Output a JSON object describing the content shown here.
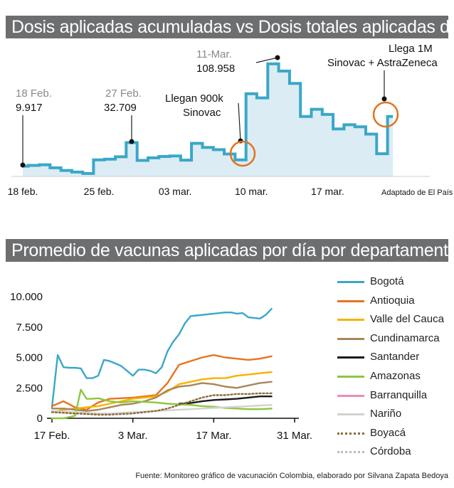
{
  "colors": {
    "banner_bg": "#6d6e70",
    "step_line": "#3aa7c8",
    "step_fill": "#dcecf4",
    "highlight_circle": "#e2731e"
  },
  "chart1_title": "Dosis aplicadas acumuladas vs Dosis totales aplicadas día",
  "chart2_title": "Promedio de vacunas aplicadas por día por departamento",
  "source_note": "Adaptado de El País",
  "footer": "Fuente: Monitoreo gráfico de vacunación Colombia, elaborado por Silvana Zapata Bedoya",
  "chart_data": [
    {
      "type": "area",
      "step": true,
      "title": "Dosis aplicadas acumuladas vs Dosis totales aplicadas día",
      "x_tick_labels": [
        "18 feb.",
        "25 feb.",
        "03 mar.",
        "10 mar.",
        "17 mar."
      ],
      "x_tick_days": [
        0,
        7,
        14,
        21,
        28
      ],
      "ylim": [
        0,
        115000
      ],
      "series": [
        {
          "x": [
            0,
            1,
            2,
            3,
            4,
            5,
            6,
            7,
            8,
            9,
            10,
            11,
            12,
            13,
            14,
            15,
            16,
            17,
            18,
            19,
            20,
            21,
            22,
            23,
            24,
            25,
            26,
            27,
            28,
            29,
            30,
            31,
            32,
            33,
            34
          ],
          "values": [
            9917,
            10700,
            11300,
            8300,
            5800,
            4200,
            2800,
            16000,
            16700,
            19000,
            32709,
            15500,
            18000,
            19300,
            19800,
            15800,
            32000,
            28000,
            25900,
            21700,
            16000,
            80000,
            76000,
            108958,
            102000,
            90000,
            58000,
            65000,
            60000,
            46000,
            50000,
            48000,
            41000,
            22000,
            58000
          ]
        }
      ],
      "annotations": [
        {
          "date": "18 Feb.",
          "value": "9.917"
        },
        {
          "date": "27 Feb.",
          "value": "32.709"
        },
        {
          "date": "11-Mar.",
          "value": "108.958"
        },
        {
          "text_lines": [
            "Llegan 900k",
            "Sinovac"
          ]
        },
        {
          "text_lines": [
            "Llega 1M",
            "Sinovac + AstraZeneca"
          ]
        }
      ]
    },
    {
      "type": "line",
      "title": "Promedio de vacunas aplicadas por día por departamento",
      "x_tick_labels": [
        "17 Feb.",
        "3 Mar.",
        "17 Mar.",
        "31 Mar."
      ],
      "x_tick_days": [
        0,
        14,
        28,
        42
      ],
      "y_ticks": [
        "0",
        "2.500",
        "5.000",
        "7.500",
        "10.000"
      ],
      "ylim": [
        0,
        10000
      ],
      "series": [
        {
          "name": "Bogotá",
          "color": "#3aa7c8",
          "x": [
            0,
            1,
            2,
            3,
            4,
            5,
            6,
            7,
            8,
            9,
            10,
            11,
            12,
            13,
            14,
            15,
            16,
            17,
            18,
            19,
            20,
            21,
            22,
            23,
            24,
            25,
            26,
            27,
            28,
            29,
            30,
            31,
            32,
            33,
            34,
            35,
            36,
            37,
            38
          ],
          "values": [
            900,
            5200,
            4200,
            4150,
            4150,
            4100,
            3300,
            3300,
            3500,
            4800,
            4700,
            4500,
            4300,
            3900,
            3500,
            4000,
            4000,
            3900,
            3700,
            4200,
            5500,
            6300,
            6900,
            7800,
            8400,
            8450,
            8500,
            8550,
            8600,
            8650,
            8700,
            8700,
            8600,
            8650,
            8300,
            8250,
            8200,
            8500,
            9000
          ]
        },
        {
          "name": "Antioquia",
          "color": "#e8731e",
          "x": [
            0,
            2,
            4,
            6,
            8,
            10,
            12,
            14,
            16,
            18,
            20,
            22,
            24,
            26,
            28,
            30,
            32,
            34,
            36,
            38
          ],
          "values": [
            1000,
            1400,
            900,
            700,
            1300,
            1600,
            1650,
            1700,
            1800,
            1900,
            2900,
            4400,
            4700,
            5000,
            5200,
            5000,
            4900,
            4800,
            4900,
            5100
          ]
        },
        {
          "name": "Valle del Cauca",
          "color": "#f5b400",
          "x": [
            0,
            2,
            4,
            6,
            8,
            10,
            12,
            14,
            16,
            18,
            20,
            22,
            24,
            26,
            28,
            30,
            32,
            34,
            36,
            38
          ],
          "values": [
            500,
            700,
            800,
            900,
            1000,
            1200,
            1400,
            1600,
            1700,
            1800,
            2200,
            2800,
            3000,
            3200,
            3300,
            3300,
            3500,
            3600,
            3700,
            3800
          ]
        },
        {
          "name": "Cundinamarca",
          "color": "#a8865a",
          "x": [
            0,
            2,
            4,
            6,
            8,
            10,
            12,
            14,
            16,
            18,
            20,
            22,
            24,
            26,
            28,
            30,
            32,
            34,
            36,
            38
          ],
          "values": [
            800,
            800,
            700,
            600,
            700,
            900,
            1100,
            1200,
            1400,
            1700,
            2300,
            2600,
            2700,
            2900,
            2800,
            2600,
            2500,
            2700,
            2900,
            3000
          ]
        },
        {
          "name": "Santander",
          "color": "#1a1a1a",
          "x": [
            0,
            2,
            4,
            6,
            8,
            10,
            12,
            14,
            16,
            18,
            20,
            22,
            24,
            26,
            28,
            30,
            32,
            34,
            36,
            38
          ],
          "values": [
            null,
            null,
            null,
            null,
            null,
            null,
            null,
            null,
            null,
            null,
            null,
            1200,
            1250,
            1400,
            1500,
            1550,
            1600,
            1700,
            1800,
            1800
          ]
        },
        {
          "name": "Amazonas",
          "color": "#8dc63f",
          "x": [
            0,
            2,
            4,
            5,
            6,
            7,
            8,
            10,
            12,
            14,
            16,
            18,
            20,
            22,
            24,
            26,
            28,
            30,
            32,
            34,
            36,
            38
          ],
          "values": [
            0,
            0,
            200,
            2350,
            1600,
            1600,
            1650,
            1400,
            1300,
            1400,
            1350,
            1300,
            1200,
            1150,
            1100,
            1000,
            950,
            850,
            800,
            750,
            750,
            800
          ]
        },
        {
          "name": "Barranquilla",
          "color": "#f08ab8",
          "x": [],
          "values": []
        },
        {
          "name": "Nariño",
          "color": "#d4d2cc",
          "x": [
            0,
            2,
            4,
            6,
            8,
            10,
            12,
            14,
            16,
            18,
            20,
            22,
            24,
            26,
            28,
            30,
            32,
            34,
            36,
            38
          ],
          "values": [
            600,
            550,
            500,
            450,
            400,
            400,
            450,
            500,
            550,
            600,
            650,
            700,
            750,
            800,
            850,
            900,
            950,
            1000,
            1050,
            1100
          ]
        },
        {
          "name": "Boyacá",
          "color": "#8a6a3c",
          "dash": "dotted",
          "x": [
            0,
            2,
            4,
            6,
            8,
            10,
            12,
            14,
            16,
            18,
            20,
            22,
            24,
            26,
            28,
            30,
            32,
            34,
            36,
            38
          ],
          "values": [
            500,
            450,
            400,
            350,
            300,
            300,
            350,
            400,
            500,
            600,
            800,
            1100,
            1400,
            1700,
            1900,
            1900,
            2000,
            2000,
            2050,
            2050
          ]
        },
        {
          "name": "Córdoba",
          "color": "#bdbbb6",
          "dash": "dotted",
          "x": [],
          "values": []
        }
      ]
    }
  ]
}
